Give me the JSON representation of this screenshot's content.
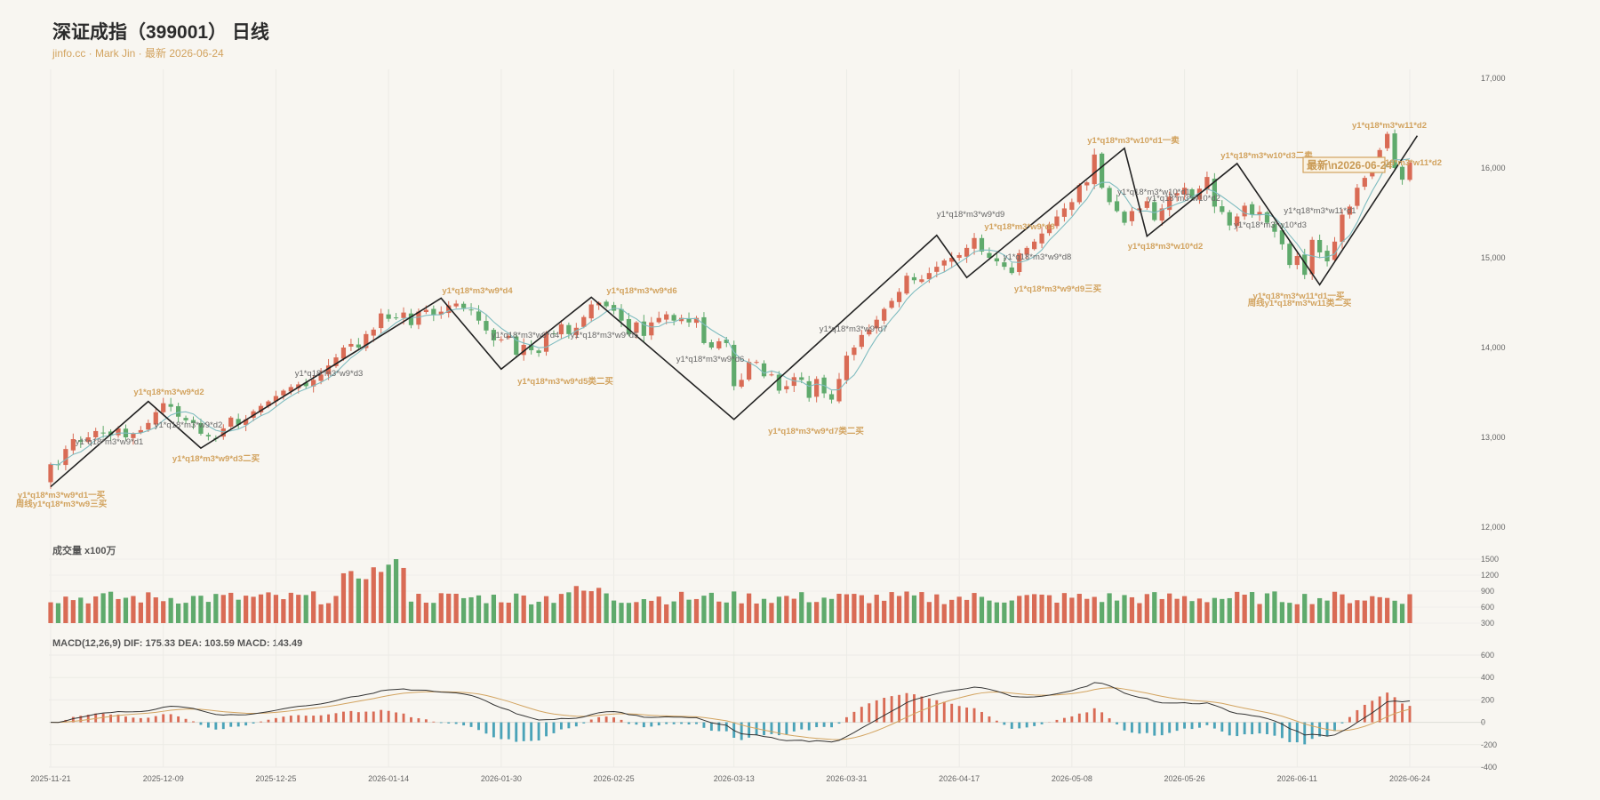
{
  "header": {
    "title": "深证成指（399001） 日线",
    "subtitle": "jinfo.cc · Mark Jin · 最新 2026-06-24"
  },
  "volume_label": "成交量 x100万",
  "macd_label": "MACD(12,26,9) DIF: 175.33 DEA: 103.59 MACD: 143.49",
  "latest_label": "最新\\n2026-06-24",
  "colors": {
    "up": "#d96b55",
    "down": "#5faa6c",
    "ma": "#7fbcc0",
    "zigzag": "#222222",
    "dif": "#333333",
    "dea": "#d2a35f",
    "hist_pos": "#d96b55",
    "hist_neg": "#4aa3b8",
    "gold": "#d2a35f",
    "background": "#f8f6f1"
  },
  "chart_data": {
    "type": "candlestick",
    "panels": [
      "price",
      "volume",
      "macd"
    ],
    "x_dates": [
      "2025-11-21",
      "2025-12-09",
      "2025-12-25",
      "2026-01-14",
      "2026-01-30",
      "2026-02-25",
      "2026-03-13",
      "2026-03-31",
      "2026-04-17",
      "2026-05-08",
      "2026-05-26",
      "2026-06-11",
      "2026-06-24"
    ],
    "price_axis": {
      "ticks": [
        12000,
        13000,
        14000,
        15000,
        16000,
        17000
      ],
      "tick_labels": [
        "12,000",
        "13,000",
        "14,000",
        "15,000",
        "16,000",
        "17,000"
      ],
      "ylim": [
        12000,
        17000
      ]
    },
    "volume_axis": {
      "ticks": [
        300,
        600,
        900,
        1200,
        1500
      ],
      "ylim": [
        300,
        1500
      ]
    },
    "macd_axis": {
      "ticks": [
        -400,
        -200,
        0,
        200,
        400,
        600
      ],
      "ylim": [
        -400,
        600
      ]
    },
    "closes": [
      12700,
      12690,
      12870,
      12980,
      12950,
      13000,
      13070,
      13050,
      13020,
      13100,
      13000,
      13040,
      13080,
      13160,
      13280,
      13380,
      13340,
      13230,
      13190,
      13160,
      13040,
      13010,
      12990,
      13100,
      13220,
      13140,
      13200,
      13290,
      13350,
      13400,
      13460,
      13520,
      13560,
      13590,
      13570,
      13640,
      13700,
      13800,
      13890,
      14000,
      14040,
      14000,
      14150,
      14200,
      14380,
      14320,
      14330,
      14390,
      14250,
      14400,
      14420,
      14360,
      14400,
      14470,
      14490,
      14440,
      14420,
      14300,
      14190,
      14080,
      14090,
      14130,
      13920,
      14030,
      13970,
      13940,
      14160,
      14150,
      14260,
      14150,
      14220,
      14340,
      14480,
      14500,
      14460,
      14410,
      14300,
      14150,
      14280,
      14130,
      14280,
      14330,
      14370,
      14300,
      14330,
      14280,
      14330,
      14050,
      14000,
      14070,
      14050,
      13570,
      13640,
      13840,
      13840,
      13680,
      13700,
      13520,
      13570,
      13670,
      13640,
      13440,
      13650,
      13490,
      13420,
      13650,
      13910,
      14000,
      14140,
      14200,
      14310,
      14430,
      14520,
      14620,
      14800,
      14750,
      14760,
      14830,
      14900,
      14970,
      15000,
      15030,
      15110,
      15220,
      15070,
      15000,
      14960,
      14900,
      14830,
      15050,
      15110,
      15180,
      15270,
      15370,
      15460,
      15550,
      15620,
      15810,
      15840,
      16150,
      15780,
      15620,
      15520,
      15390,
      15520,
      15550,
      15630,
      15420,
      15550,
      15680,
      15720,
      15780,
      15660,
      15770,
      15900,
      15570,
      15510,
      15360,
      15460,
      15580,
      15480,
      15510,
      15390,
      15290,
      15150,
      14920,
      15020,
      14810,
      15200,
      15060,
      14960,
      15180,
      15480,
      15570,
      15780,
      15890,
      16000,
      16200,
      16380,
      16000,
      15870,
      16060
    ]
  },
  "annotations": [
    {
      "text": "y1*q18*m3*w9*d1一买",
      "style": "gold"
    },
    {
      "text": "周线y1*q18*m3*w9三买",
      "style": "gold"
    },
    {
      "text": "y1*q18*m3*w9*d1",
      "style": "gray"
    },
    {
      "text": "y1*q18*m3*w9*d2",
      "style": "gold"
    },
    {
      "text": "y1*q18*m3*w9*d2",
      "style": "gray"
    },
    {
      "text": "y1*q18*m3*w9*d3二买",
      "style": "gold"
    },
    {
      "text": "y1*q18*m3*w9*d3",
      "style": "gray"
    },
    {
      "text": "y1*q18*m3*w9*d4",
      "style": "gold"
    },
    {
      "text": "y1*q18*m3*w9*d4",
      "style": "gray"
    },
    {
      "text": "y1*q18*m3*w9*d5类二买",
      "style": "gold"
    },
    {
      "text": "y1*q18*m3*w9*d5",
      "style": "gray"
    },
    {
      "text": "y1*q18*m3*w9*d6",
      "style": "gold"
    },
    {
      "text": "y1*q18*m3*w9*d6",
      "style": "gray"
    },
    {
      "text": "y1*q18*m3*w9*d7类二买",
      "style": "gold"
    },
    {
      "text": "y1*q18*m3*w9*d7",
      "style": "gray"
    },
    {
      "text": "y1*q18*m3*w9*d8",
      "style": "gold"
    },
    {
      "text": "y1*q18*m3*w9*d8",
      "style": "gray"
    },
    {
      "text": "y1*q18*m3*w9*d9三买",
      "style": "gold"
    },
    {
      "text": "y1*q18*m3*w9*d9",
      "style": "gray"
    },
    {
      "text": "y1*q18*m3*w10*d1一卖",
      "style": "gold"
    },
    {
      "text": "y1*q18*m3*w10*d1",
      "style": "gray"
    },
    {
      "text": "y1*q18*m3*w10*d2",
      "style": "gold"
    },
    {
      "text": "y1*q18*m3*w10*d2",
      "style": "gray"
    },
    {
      "text": "y1*q18*m3*w10*d3二卖",
      "style": "gold"
    },
    {
      "text": "y1*q18*m3*w10*d3",
      "style": "gray"
    },
    {
      "text": "y1*q18*m3*w11*d1一买",
      "style": "gold"
    },
    {
      "text": "周线y1*q18*m3*w11类二买",
      "style": "gold"
    },
    {
      "text": "y1*q18*m3*w11*d1",
      "style": "gray"
    },
    {
      "text": "y1*q18*m3*w11*d2",
      "style": "gold"
    },
    {
      "text": "y1*q18*m3*w11*d2",
      "style": "gold"
    }
  ]
}
